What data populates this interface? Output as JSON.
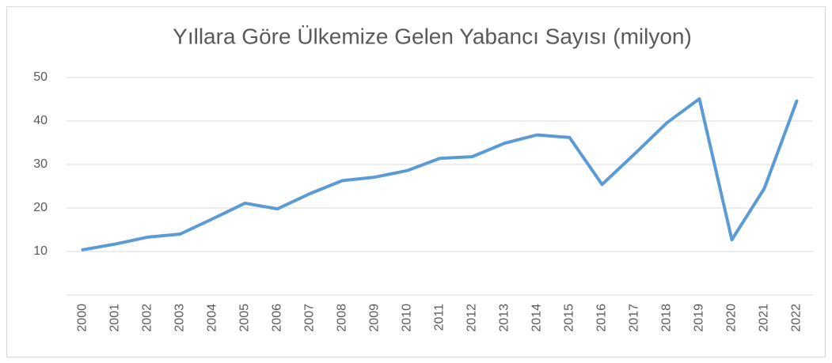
{
  "chart_data": {
    "type": "line",
    "title": "Yıllara Göre Ülkemize Gelen Yabancı Sayısı (milyon)",
    "categories": [
      "2000",
      "2001",
      "2002",
      "2003",
      "2004",
      "2005",
      "2006",
      "2007",
      "2008",
      "2009",
      "2010",
      "2011",
      "2012",
      "2013",
      "2014",
      "2015",
      "2016",
      "2017",
      "2018",
      "2019",
      "2020",
      "2021",
      "2022"
    ],
    "values": [
      10.4,
      11.7,
      13.3,
      14.0,
      17.5,
      21.1,
      19.8,
      23.3,
      26.3,
      27.1,
      28.6,
      31.4,
      31.8,
      34.9,
      36.8,
      36.2,
      25.4,
      32.4,
      39.6,
      45.1,
      12.7,
      24.5,
      44.6
    ],
    "color": "#5b9bd5",
    "ylim": [
      0,
      50
    ],
    "yticks": [
      10,
      20,
      30,
      40,
      50
    ],
    "grid": true
  }
}
